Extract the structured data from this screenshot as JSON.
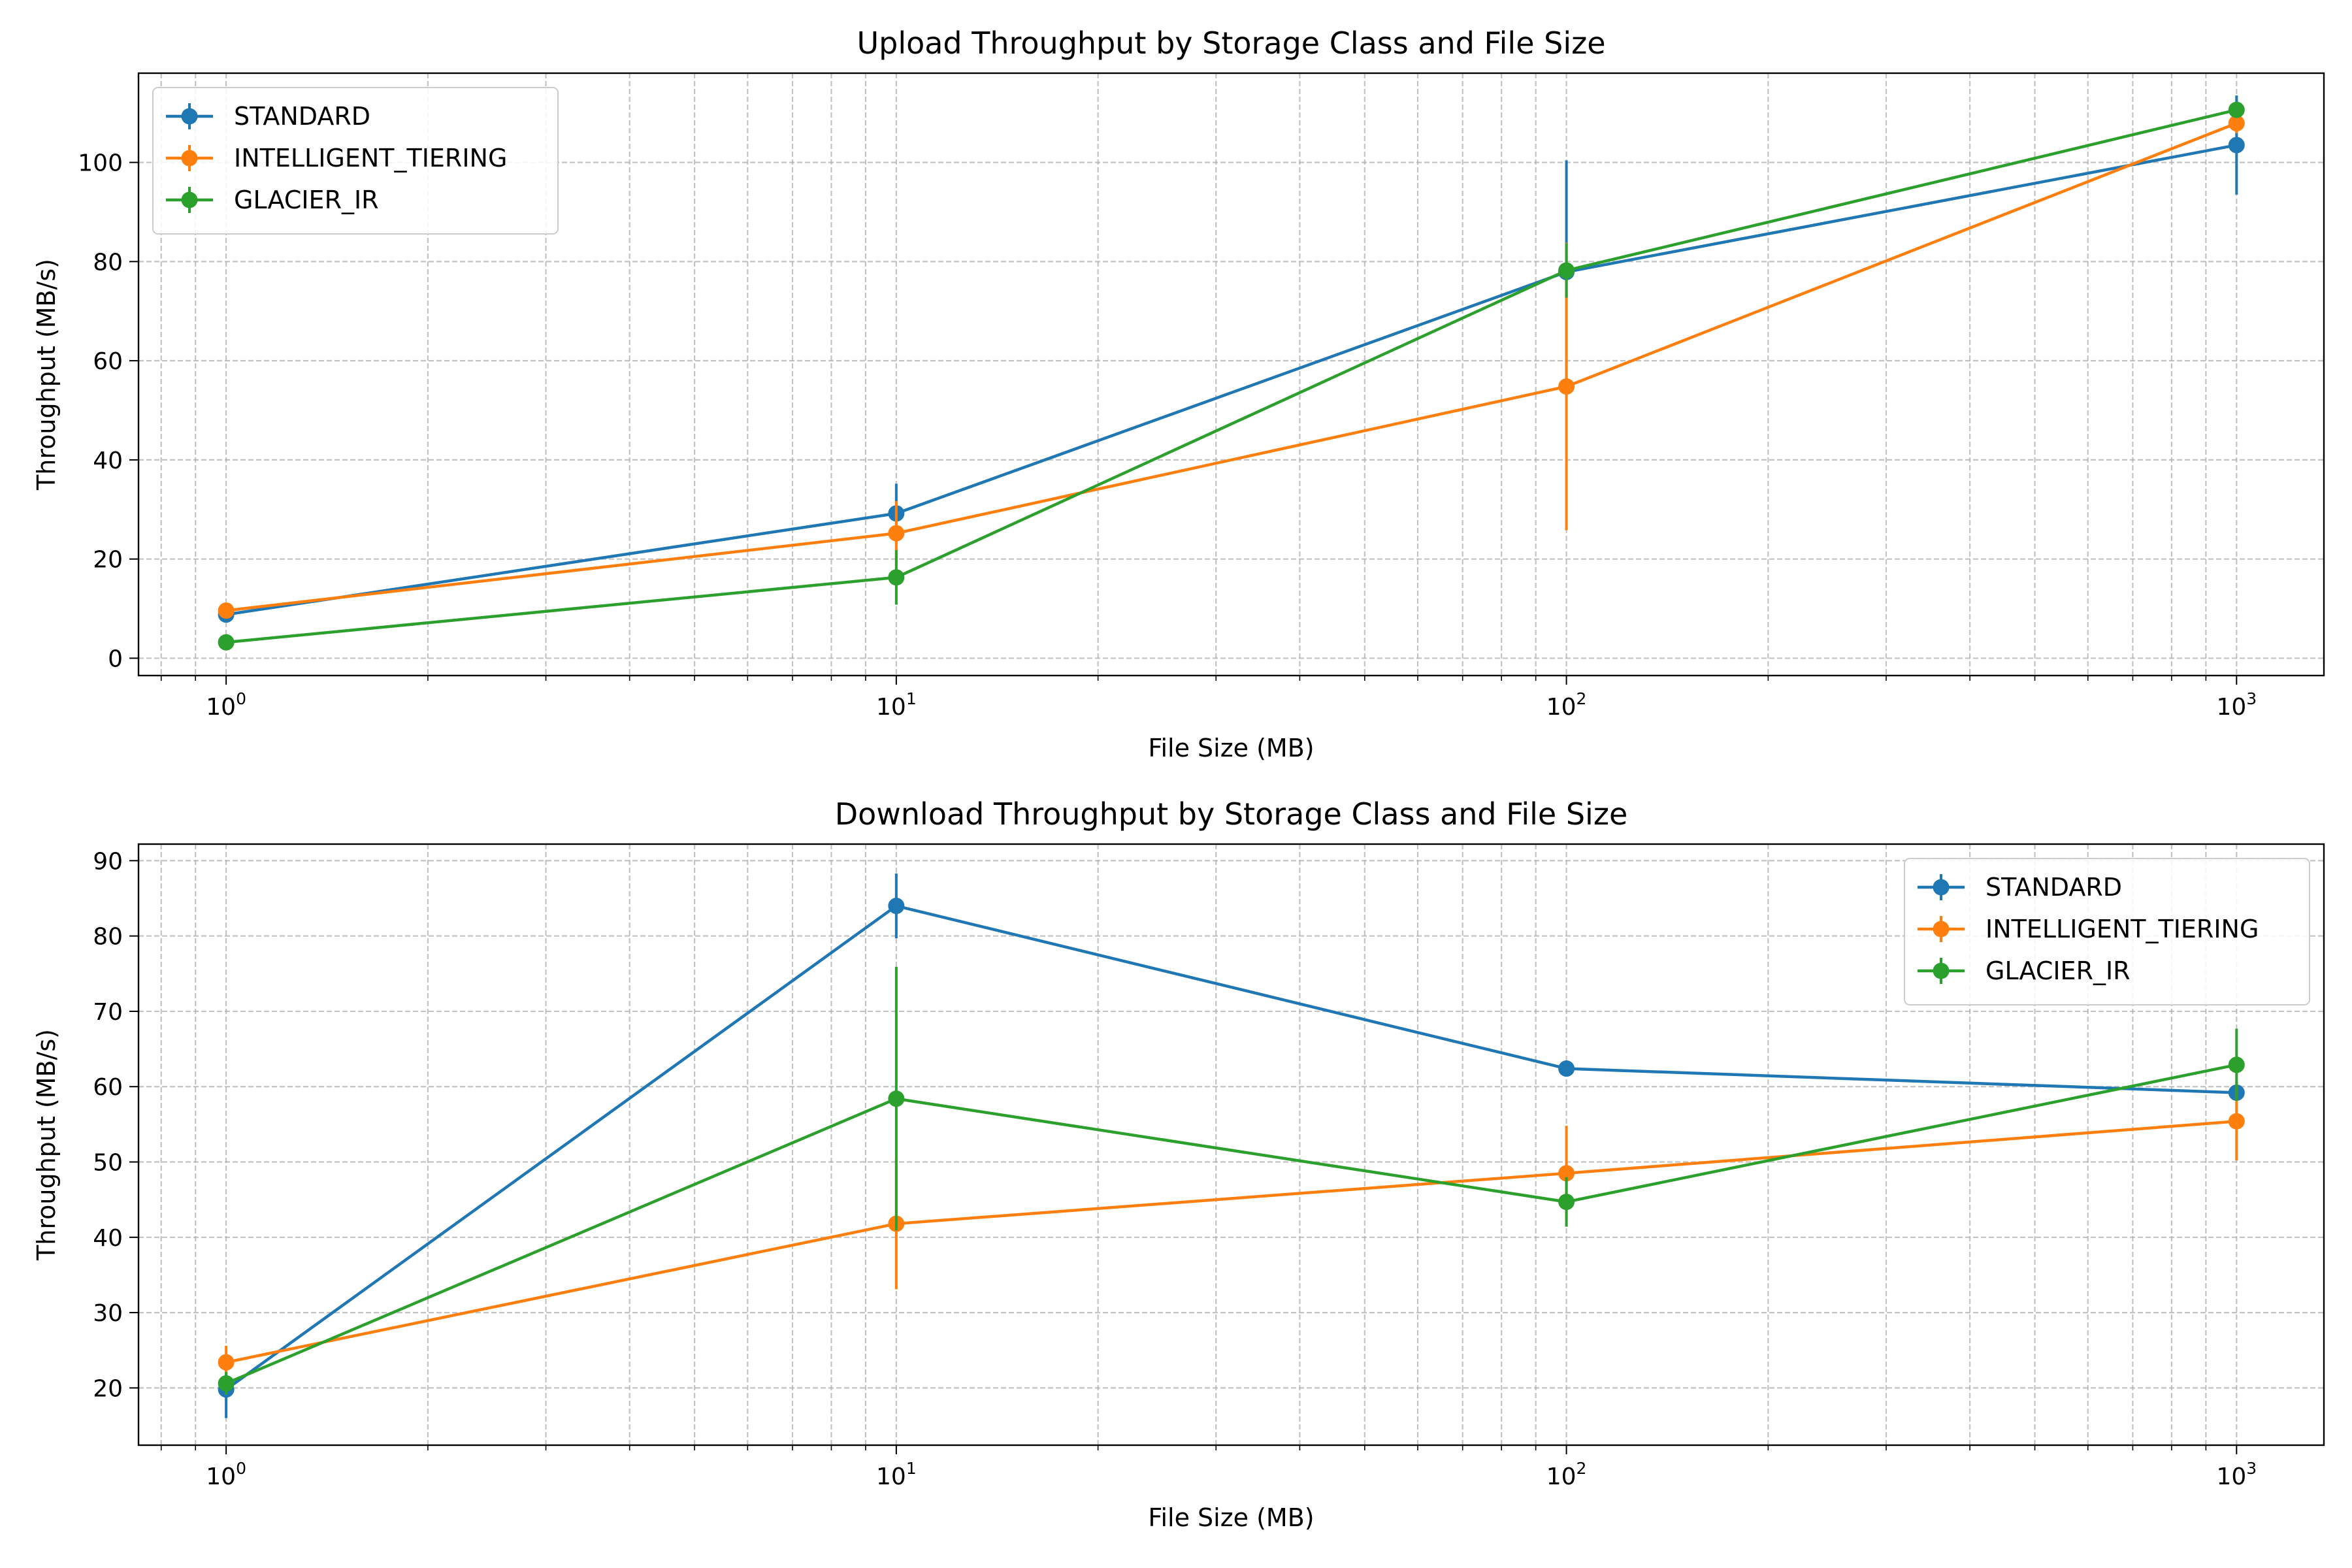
{
  "chart_data": [
    {
      "type": "line",
      "title": "Upload Throughput by Storage Class and File Size",
      "xlabel": "File Size (MB)",
      "ylabel": "Throughput (MB/s)",
      "xscale": "log",
      "x": [
        1,
        10,
        100,
        1000
      ],
      "xlim": [
        0.74,
        1350
      ],
      "ylim": [
        -3.5,
        118
      ],
      "yticks": [
        0,
        20,
        40,
        60,
        80,
        100
      ],
      "grid": true,
      "legend": "upper left",
      "series": [
        {
          "name": "STANDARD",
          "color": "#1f77b4",
          "values": [
            8.8,
            29.2,
            77.9,
            103.5
          ],
          "errors": [
            1.0,
            6.0,
            22.5,
            10.0
          ]
        },
        {
          "name": "INTELLIGENT_TIERING",
          "color": "#ff7f0e",
          "values": [
            9.6,
            25.2,
            54.8,
            107.9
          ],
          "errors": [
            1.2,
            6.5,
            29.0,
            2.0
          ]
        },
        {
          "name": "GLACIER_IR",
          "color": "#2ca02c",
          "values": [
            3.2,
            16.3,
            78.2,
            110.6
          ],
          "errors": [
            0.6,
            5.5,
            5.5,
            1.5
          ]
        }
      ]
    },
    {
      "type": "line",
      "title": "Download Throughput by Storage Class and File Size",
      "xlabel": "File Size (MB)",
      "ylabel": "Throughput (MB/s)",
      "xscale": "log",
      "x": [
        1,
        10,
        100,
        1000
      ],
      "xlim": [
        0.74,
        1350
      ],
      "ylim": [
        12.4,
        92.2
      ],
      "yticks": [
        20,
        30,
        40,
        50,
        60,
        70,
        80,
        90
      ],
      "grid": true,
      "legend": "upper right",
      "series": [
        {
          "name": "STANDARD",
          "color": "#1f77b4",
          "values": [
            19.8,
            84.0,
            62.4,
            59.2
          ],
          "errors": [
            3.8,
            4.3,
            0.5,
            0.5
          ]
        },
        {
          "name": "INTELLIGENT_TIERING",
          "color": "#ff7f0e",
          "values": [
            23.4,
            41.8,
            48.5,
            55.4
          ],
          "errors": [
            2.2,
            8.7,
            6.3,
            5.2
          ]
        },
        {
          "name": "GLACIER_IR",
          "color": "#2ca02c",
          "values": [
            20.6,
            58.4,
            44.7,
            62.9
          ],
          "errors": [
            1.5,
            17.5,
            3.3,
            4.8
          ]
        }
      ]
    }
  ],
  "x_tick_labels": [
    {
      "base": "10",
      "exp": "0"
    },
    {
      "base": "10",
      "exp": "1"
    },
    {
      "base": "10",
      "exp": "2"
    },
    {
      "base": "10",
      "exp": "3"
    }
  ]
}
